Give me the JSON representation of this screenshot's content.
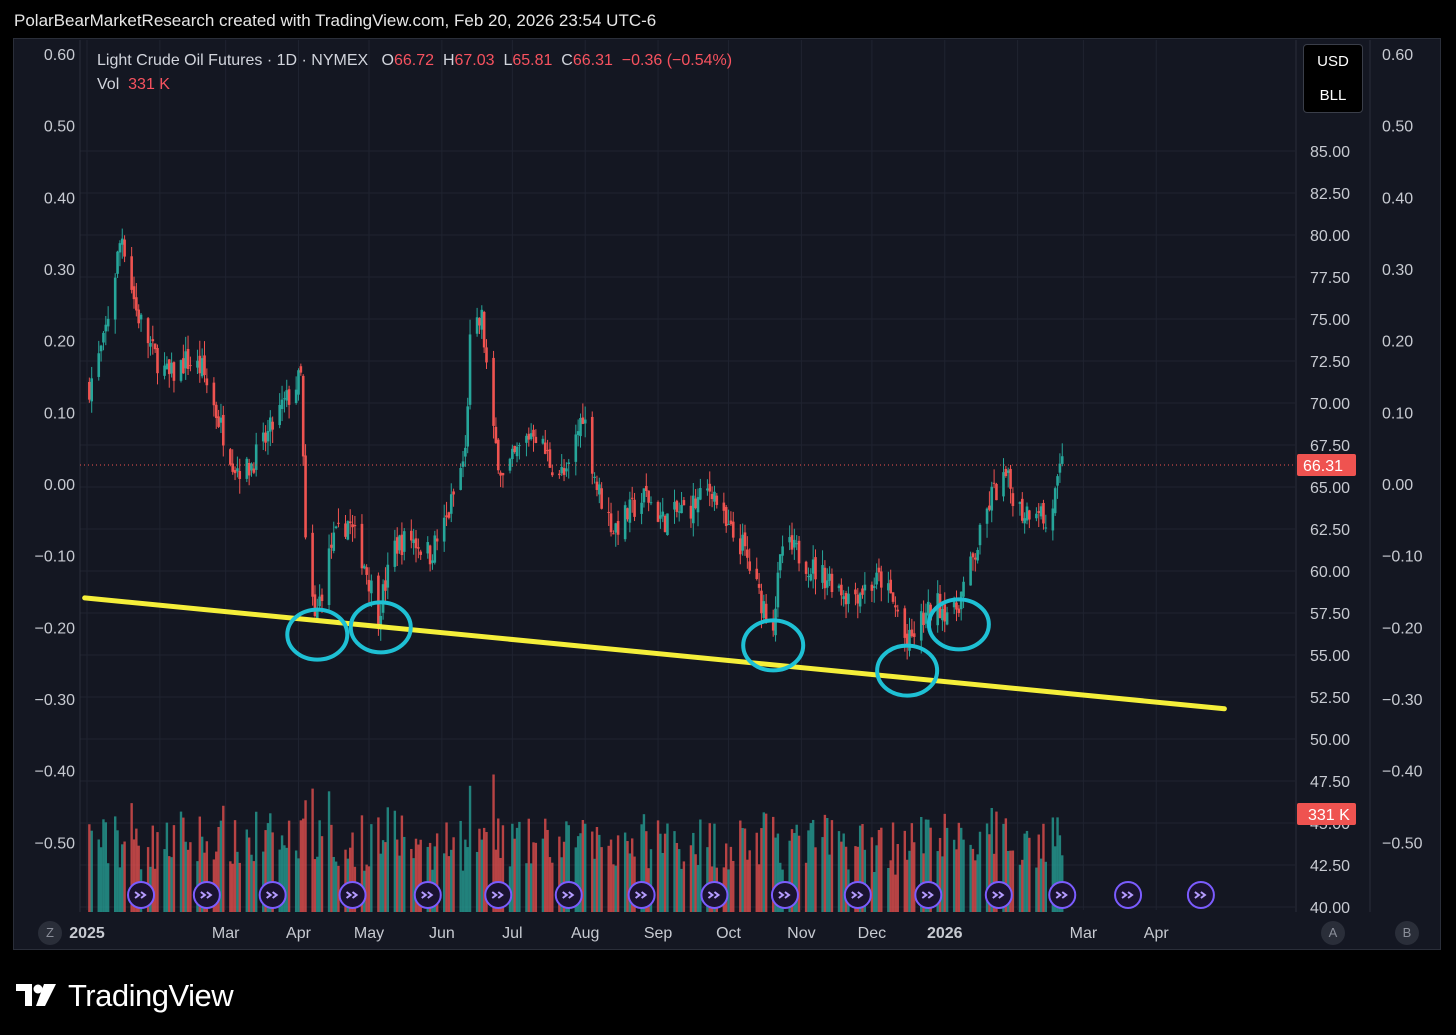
{
  "header": {
    "attribution": "PolarBearMarketResearch created with TradingView.com, Feb 20, 2026 23:54 UTC-6"
  },
  "legend": {
    "symbol": "Light Crude Oil Futures · 1D · NYMEX",
    "o_label": "O",
    "o_value": "66.72",
    "h_label": "H",
    "h_value": "67.03",
    "l_label": "L",
    "l_value": "65.81",
    "c_label": "C",
    "c_value": "66.31",
    "change": "−0.36 (−0.54%)",
    "vol_label": "Vol",
    "vol_value": "331 K"
  },
  "currency": {
    "currency": "USD",
    "unit": "BLL"
  },
  "axis_buttons": {
    "z": "Z",
    "a": "A",
    "b": "B"
  },
  "footer": {
    "brand": "TradingView"
  },
  "colors": {
    "up": "#26a69a",
    "down": "#ef5350",
    "background": "#141722",
    "trendline": "#f5ef3a",
    "annotation": "#1ec0d4",
    "event_icon": "#7b5cff"
  },
  "chart_data": {
    "type": "candlestick",
    "symbol": "Light Crude Oil Futures",
    "interval": "1D",
    "exchange": "NYMEX",
    "last_price": "66.31",
    "last_volume": "331 K",
    "right_axis_ticks": [
      "85.00",
      "82.50",
      "80.00",
      "77.50",
      "75.00",
      "72.50",
      "70.00",
      "67.50",
      "65.00",
      "62.50",
      "60.00",
      "57.50",
      "55.00",
      "52.50",
      "50.00",
      "47.50",
      "45.00",
      "42.50",
      "40.00"
    ],
    "right_axis_range": [
      40,
      85
    ],
    "left_axis_ticks": [
      "0.60",
      "0.50",
      "0.40",
      "0.30",
      "0.20",
      "0.10",
      "0.00",
      "−0.10",
      "−0.20",
      "−0.30",
      "−0.40",
      "−0.50"
    ],
    "left_axis_range": [
      -0.5,
      0.6
    ],
    "outer_axis_ticks": [
      "0.60",
      "0.50",
      "0.40",
      "0.30",
      "0.20",
      "0.10",
      "0.00",
      "−0.10",
      "−0.20",
      "−0.30",
      "−0.40",
      "−0.50"
    ],
    "x_ticks": [
      "2025",
      "Mar",
      "Apr",
      "May",
      "Jun",
      "Jul",
      "Aug",
      "Sep",
      "Oct",
      "Nov",
      "Dec",
      "2026",
      "Mar",
      "Apr"
    ],
    "x_tick_bold": [
      "2025",
      "2026"
    ],
    "price_path": [
      [
        "2025-01-02",
        71.0
      ],
      [
        "2025-01-08",
        73.5
      ],
      [
        "2025-01-15",
        79.5
      ],
      [
        "2025-01-16",
        80.0
      ],
      [
        "2025-01-22",
        75.5
      ],
      [
        "2025-01-29",
        73.0
      ],
      [
        "2025-02-05",
        71.5
      ],
      [
        "2025-02-12",
        72.5
      ],
      [
        "2025-02-19",
        72.0
      ],
      [
        "2025-02-26",
        69.0
      ],
      [
        "2025-03-05",
        66.3
      ],
      [
        "2025-03-10",
        66.0
      ],
      [
        "2025-03-17",
        67.5
      ],
      [
        "2025-03-24",
        69.5
      ],
      [
        "2025-04-02",
        71.5
      ],
      [
        "2025-04-04",
        61.5
      ],
      [
        "2025-04-08",
        57.0
      ],
      [
        "2025-04-15",
        61.5
      ],
      [
        "2025-04-22",
        63.0
      ],
      [
        "2025-04-29",
        60.5
      ],
      [
        "2025-05-05",
        57.5
      ],
      [
        "2025-05-12",
        61.5
      ],
      [
        "2025-05-19",
        62.0
      ],
      [
        "2025-05-27",
        61.0
      ],
      [
        "2025-06-03",
        63.0
      ],
      [
        "2025-06-11",
        67.0
      ],
      [
        "2025-06-13",
        73.5
      ],
      [
        "2025-06-18",
        75.0
      ],
      [
        "2025-06-23",
        68.0
      ],
      [
        "2025-06-27",
        65.5
      ],
      [
        "2025-07-03",
        67.0
      ],
      [
        "2025-07-10",
        68.5
      ],
      [
        "2025-07-17",
        66.5
      ],
      [
        "2025-07-24",
        65.5
      ],
      [
        "2025-07-31",
        69.5
      ],
      [
        "2025-08-06",
        65.0
      ],
      [
        "2025-08-13",
        62.5
      ],
      [
        "2025-08-20",
        63.5
      ],
      [
        "2025-08-27",
        64.5
      ],
      [
        "2025-09-03",
        63.0
      ],
      [
        "2025-09-10",
        63.5
      ],
      [
        "2025-09-17",
        64.0
      ],
      [
        "2025-09-24",
        65.0
      ],
      [
        "2025-09-30",
        62.5
      ],
      [
        "2025-10-07",
        61.5
      ],
      [
        "2025-10-14",
        58.5
      ],
      [
        "2025-10-20",
        57.0
      ],
      [
        "2025-10-24",
        61.5
      ],
      [
        "2025-10-31",
        61.0
      ],
      [
        "2025-11-07",
        60.0
      ],
      [
        "2025-11-14",
        59.5
      ],
      [
        "2025-11-21",
        58.5
      ],
      [
        "2025-11-28",
        59.0
      ],
      [
        "2025-12-05",
        59.5
      ],
      [
        "2025-12-12",
        57.5
      ],
      [
        "2025-12-16",
        55.5
      ],
      [
        "2025-12-22",
        57.0
      ],
      [
        "2025-12-29",
        58.0
      ],
      [
        "2026-01-05",
        57.5
      ],
      [
        "2026-01-09",
        59.0
      ],
      [
        "2026-01-14",
        61.0
      ],
      [
        "2026-01-21",
        64.5
      ],
      [
        "2026-01-27",
        65.5
      ],
      [
        "2026-02-03",
        63.5
      ],
      [
        "2026-02-10",
        64.0
      ],
      [
        "2026-02-13",
        62.5
      ],
      [
        "2026-02-18",
        65.0
      ],
      [
        "2026-02-20",
        66.31
      ]
    ],
    "trendline": [
      [
        "2024-12-31",
        58.4
      ],
      [
        "2026-04-30",
        51.8
      ]
    ],
    "annotated_lows": [
      "2025-04-09",
      "2025-05-06",
      "2025-10-20",
      "2025-12-16",
      "2026-01-07"
    ]
  }
}
